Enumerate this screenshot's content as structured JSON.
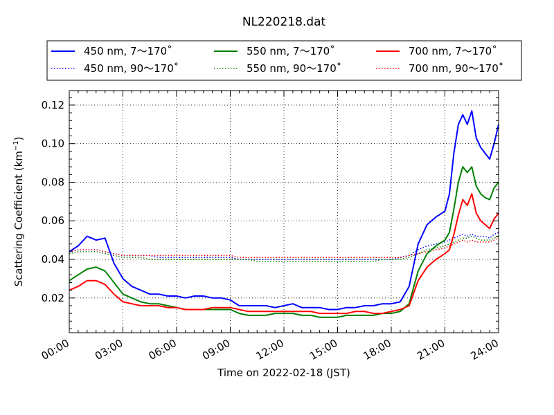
{
  "chart_data": {
    "type": "line",
    "title": "NL220218.dat",
    "xlabel": "Time on 2022-02-18 (JST)",
    "ylabel_main": "Scattering Coefficient (km",
    "ylabel_sup": "−1",
    "ylabel_close": ")",
    "x_unit": "hours",
    "xlim": [
      0,
      24
    ],
    "ylim": [
      0.002,
      0.1275
    ],
    "grid": true,
    "legend_placement": "top",
    "x_ticks": [
      {
        "value": 0,
        "label": "00:00"
      },
      {
        "value": 3,
        "label": "03:00"
      },
      {
        "value": 6,
        "label": "06:00"
      },
      {
        "value": 9,
        "label": "09:00"
      },
      {
        "value": 12,
        "label": "12:00"
      },
      {
        "value": 15,
        "label": "15:00"
      },
      {
        "value": 18,
        "label": "18:00"
      },
      {
        "value": 21,
        "label": "21:00"
      },
      {
        "value": 24,
        "label": "24:00"
      }
    ],
    "y_ticks": [
      {
        "value": 0.02,
        "label": "0.02"
      },
      {
        "value": 0.04,
        "label": "0.04"
      },
      {
        "value": 0.06,
        "label": "0.06"
      },
      {
        "value": 0.08,
        "label": "0.08"
      },
      {
        "value": 0.1,
        "label": "0.10"
      },
      {
        "value": 0.12,
        "label": "0.12"
      }
    ],
    "x": [
      0,
      0.5,
      1,
      1.5,
      2,
      2.5,
      3,
      3.5,
      4,
      4.5,
      5,
      5.5,
      6,
      6.5,
      7,
      7.5,
      8,
      8.5,
      9,
      9.5,
      10,
      10.5,
      11,
      11.5,
      12,
      12.5,
      13,
      13.5,
      14,
      14.5,
      15,
      15.5,
      16,
      16.5,
      17,
      17.5,
      18,
      18.5,
      19,
      19.5,
      20,
      20.5,
      21,
      21.25,
      21.5,
      21.75,
      22,
      22.25,
      22.5,
      22.75,
      23,
      23.25,
      23.5,
      23.75,
      24
    ],
    "series": [
      {
        "name": "450 nm, 7～170˚",
        "color": "#0000ff",
        "style": "solid",
        "values": [
          0.044,
          0.047,
          0.052,
          0.05,
          0.051,
          0.038,
          0.03,
          0.026,
          0.024,
          0.022,
          0.022,
          0.021,
          0.021,
          0.02,
          0.021,
          0.021,
          0.02,
          0.02,
          0.019,
          0.016,
          0.016,
          0.016,
          0.016,
          0.015,
          0.016,
          0.017,
          0.015,
          0.015,
          0.015,
          0.014,
          0.014,
          0.015,
          0.015,
          0.016,
          0.016,
          0.017,
          0.017,
          0.018,
          0.026,
          0.048,
          0.058,
          0.062,
          0.065,
          0.074,
          0.095,
          0.11,
          0.115,
          0.11,
          0.117,
          0.103,
          0.098,
          0.095,
          0.092,
          0.1,
          0.11
        ]
      },
      {
        "name": "550 nm, 7～170˚",
        "color": "#008000",
        "style": "solid",
        "values": [
          0.029,
          0.032,
          0.035,
          0.036,
          0.034,
          0.028,
          0.022,
          0.02,
          0.018,
          0.017,
          0.017,
          0.016,
          0.015,
          0.014,
          0.014,
          0.014,
          0.014,
          0.014,
          0.014,
          0.012,
          0.011,
          0.011,
          0.011,
          0.012,
          0.012,
          0.012,
          0.011,
          0.011,
          0.01,
          0.01,
          0.01,
          0.011,
          0.011,
          0.011,
          0.011,
          0.012,
          0.012,
          0.013,
          0.017,
          0.034,
          0.043,
          0.047,
          0.05,
          0.054,
          0.066,
          0.08,
          0.088,
          0.085,
          0.088,
          0.078,
          0.074,
          0.072,
          0.071,
          0.077,
          0.08
        ]
      },
      {
        "name": "700 nm, 7～170˚",
        "color": "#ff0000",
        "style": "solid",
        "values": [
          0.024,
          0.026,
          0.029,
          0.029,
          0.027,
          0.022,
          0.018,
          0.017,
          0.016,
          0.016,
          0.016,
          0.015,
          0.015,
          0.014,
          0.014,
          0.014,
          0.015,
          0.015,
          0.015,
          0.014,
          0.013,
          0.013,
          0.013,
          0.013,
          0.013,
          0.013,
          0.013,
          0.013,
          0.012,
          0.012,
          0.012,
          0.012,
          0.013,
          0.013,
          0.012,
          0.012,
          0.013,
          0.014,
          0.016,
          0.029,
          0.036,
          0.04,
          0.043,
          0.045,
          0.053,
          0.063,
          0.071,
          0.068,
          0.074,
          0.064,
          0.06,
          0.058,
          0.056,
          0.061,
          0.064
        ]
      },
      {
        "name": "450 nm, 90～170˚",
        "color": "#0000ff",
        "style": "dotted",
        "values": [
          0.044,
          0.045,
          0.045,
          0.045,
          0.044,
          0.043,
          0.042,
          0.042,
          0.042,
          0.042,
          0.041,
          0.041,
          0.041,
          0.041,
          0.041,
          0.041,
          0.041,
          0.041,
          0.041,
          0.04,
          0.04,
          0.04,
          0.04,
          0.04,
          0.04,
          0.04,
          0.04,
          0.04,
          0.04,
          0.04,
          0.04,
          0.04,
          0.04,
          0.04,
          0.04,
          0.04,
          0.04,
          0.041,
          0.042,
          0.045,
          0.047,
          0.048,
          0.049,
          0.05,
          0.051,
          0.052,
          0.053,
          0.052,
          0.053,
          0.052,
          0.052,
          0.052,
          0.051,
          0.053,
          0.054
        ]
      },
      {
        "name": "550 nm, 90～170˚",
        "color": "#008000",
        "style": "dotted",
        "values": [
          0.043,
          0.044,
          0.044,
          0.044,
          0.043,
          0.042,
          0.041,
          0.041,
          0.041,
          0.04,
          0.04,
          0.04,
          0.04,
          0.04,
          0.04,
          0.04,
          0.04,
          0.04,
          0.04,
          0.04,
          0.04,
          0.039,
          0.039,
          0.039,
          0.039,
          0.039,
          0.039,
          0.039,
          0.039,
          0.039,
          0.039,
          0.039,
          0.039,
          0.039,
          0.039,
          0.04,
          0.04,
          0.04,
          0.041,
          0.043,
          0.045,
          0.046,
          0.047,
          0.048,
          0.049,
          0.05,
          0.051,
          0.051,
          0.052,
          0.051,
          0.05,
          0.05,
          0.05,
          0.051,
          0.052
        ]
      },
      {
        "name": "700 nm, 90～170˚",
        "color": "#ff0000",
        "style": "dotted",
        "values": [
          0.044,
          0.045,
          0.045,
          0.045,
          0.044,
          0.043,
          0.042,
          0.042,
          0.042,
          0.042,
          0.042,
          0.042,
          0.042,
          0.042,
          0.042,
          0.042,
          0.042,
          0.042,
          0.042,
          0.041,
          0.041,
          0.041,
          0.041,
          0.041,
          0.041,
          0.041,
          0.041,
          0.041,
          0.041,
          0.041,
          0.041,
          0.041,
          0.041,
          0.041,
          0.041,
          0.041,
          0.041,
          0.041,
          0.042,
          0.043,
          0.044,
          0.045,
          0.046,
          0.047,
          0.048,
          0.049,
          0.05,
          0.049,
          0.05,
          0.049,
          0.049,
          0.049,
          0.049,
          0.05,
          0.051
        ]
      }
    ]
  }
}
